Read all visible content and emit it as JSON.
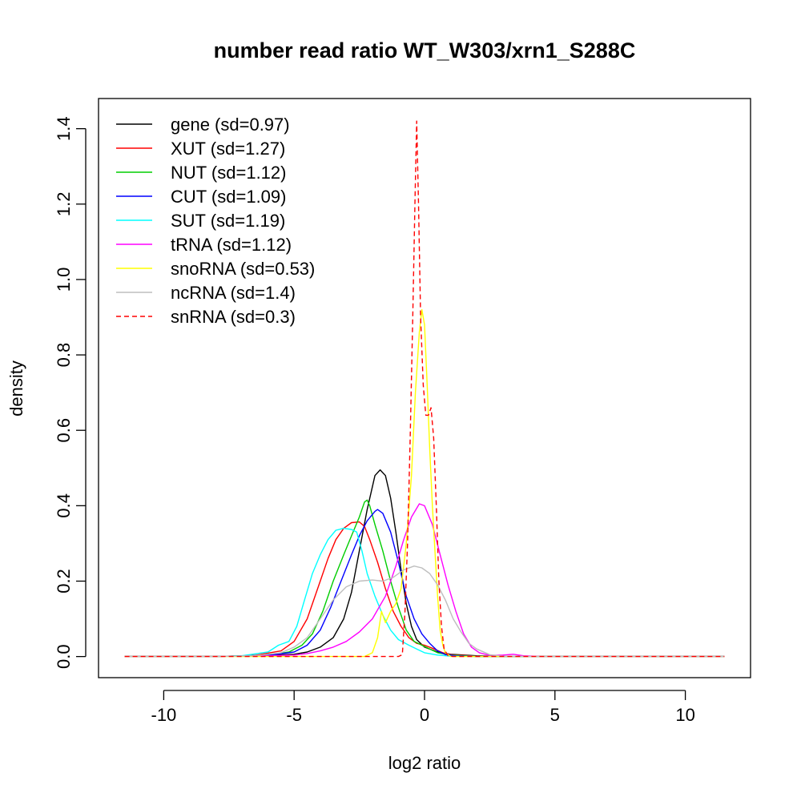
{
  "chart_data": {
    "type": "line",
    "title": "number read ratio WT_W303/xrn1_S288C",
    "xlabel": "log2 ratio",
    "ylabel": "density",
    "xlim": [
      -12.5,
      12.5
    ],
    "ylim": [
      -0.056,
      1.48
    ],
    "xticks": [
      -10,
      -5,
      0,
      5,
      10
    ],
    "xtick_labels": [
      "-10",
      "-5",
      "0",
      "5",
      "10"
    ],
    "yticks": [
      0.0,
      0.2,
      0.4,
      0.6,
      0.8,
      1.0,
      1.2,
      1.4
    ],
    "ytick_labels": [
      "0.0",
      "0.2",
      "0.4",
      "0.6",
      "0.8",
      "1.0",
      "1.2",
      "1.4"
    ],
    "grid": false,
    "legend_position": "top-left",
    "series": [
      {
        "name": "gene (sd=0.97)",
        "color": "#000000",
        "dash": false,
        "points": [
          [
            -11.5,
            0
          ],
          [
            -8,
            0
          ],
          [
            -6,
            0.003
          ],
          [
            -5,
            0.006
          ],
          [
            -4.5,
            0.012
          ],
          [
            -4,
            0.025
          ],
          [
            -3.5,
            0.05
          ],
          [
            -3.1,
            0.1
          ],
          [
            -2.8,
            0.17
          ],
          [
            -2.5,
            0.28
          ],
          [
            -2.2,
            0.39
          ],
          [
            -1.9,
            0.48
          ],
          [
            -1.7,
            0.495
          ],
          [
            -1.5,
            0.48
          ],
          [
            -1.3,
            0.42
          ],
          [
            -1.1,
            0.33
          ],
          [
            -0.9,
            0.23
          ],
          [
            -0.7,
            0.14
          ],
          [
            -0.5,
            0.08
          ],
          [
            -0.3,
            0.045
          ],
          [
            0,
            0.025
          ],
          [
            0.5,
            0.012
          ],
          [
            1,
            0.006
          ],
          [
            2,
            0.002
          ],
          [
            3,
            0
          ],
          [
            11.5,
            0
          ]
        ]
      },
      {
        "name": "XUT (sd=1.27)",
        "color": "#ff0000",
        "dash": false,
        "points": [
          [
            -11.5,
            0
          ],
          [
            -8,
            0
          ],
          [
            -6.5,
            0.003
          ],
          [
            -5.5,
            0.015
          ],
          [
            -5,
            0.04
          ],
          [
            -4.5,
            0.1
          ],
          [
            -4,
            0.2
          ],
          [
            -3.7,
            0.26
          ],
          [
            -3.4,
            0.31
          ],
          [
            -3.1,
            0.34
          ],
          [
            -2.8,
            0.355
          ],
          [
            -2.5,
            0.357
          ],
          [
            -2.3,
            0.345
          ],
          [
            -2.1,
            0.31
          ],
          [
            -1.8,
            0.25
          ],
          [
            -1.5,
            0.18
          ],
          [
            -1.2,
            0.12
          ],
          [
            -0.9,
            0.08
          ],
          [
            -0.6,
            0.05
          ],
          [
            -0.3,
            0.035
          ],
          [
            0,
            0.03
          ],
          [
            0.3,
            0.022
          ],
          [
            0.7,
            0.01
          ],
          [
            1,
            0.005
          ],
          [
            2,
            0.001
          ],
          [
            3,
            0
          ],
          [
            11.5,
            0
          ]
        ]
      },
      {
        "name": "NUT (sd=1.12)",
        "color": "#00cd00",
        "dash": false,
        "points": [
          [
            -11.5,
            0
          ],
          [
            -8,
            0
          ],
          [
            -6,
            0.003
          ],
          [
            -5.2,
            0.012
          ],
          [
            -4.7,
            0.03
          ],
          [
            -4.3,
            0.06
          ],
          [
            -3.9,
            0.12
          ],
          [
            -3.5,
            0.2
          ],
          [
            -3.1,
            0.27
          ],
          [
            -2.8,
            0.32
          ],
          [
            -2.5,
            0.37
          ],
          [
            -2.3,
            0.41
          ],
          [
            -2.2,
            0.415
          ],
          [
            -2.1,
            0.4
          ],
          [
            -1.9,
            0.35
          ],
          [
            -1.6,
            0.28
          ],
          [
            -1.3,
            0.2
          ],
          [
            -1,
            0.13
          ],
          [
            -0.7,
            0.07
          ],
          [
            -0.4,
            0.04
          ],
          [
            -0.1,
            0.03
          ],
          [
            0.2,
            0.02
          ],
          [
            0.5,
            0.01
          ],
          [
            1,
            0.004
          ],
          [
            2,
            0
          ],
          [
            11.5,
            0
          ]
        ]
      },
      {
        "name": "CUT (sd=1.09)",
        "color": "#0000ff",
        "dash": false,
        "points": [
          [
            -11.5,
            0
          ],
          [
            -8,
            0
          ],
          [
            -6,
            0.003
          ],
          [
            -5,
            0.012
          ],
          [
            -4.5,
            0.03
          ],
          [
            -4,
            0.07
          ],
          [
            -3.6,
            0.13
          ],
          [
            -3.2,
            0.2
          ],
          [
            -2.8,
            0.27
          ],
          [
            -2.5,
            0.32
          ],
          [
            -2.2,
            0.36
          ],
          [
            -1.9,
            0.385
          ],
          [
            -1.8,
            0.39
          ],
          [
            -1.6,
            0.38
          ],
          [
            -1.3,
            0.33
          ],
          [
            -1,
            0.25
          ],
          [
            -0.7,
            0.16
          ],
          [
            -0.4,
            0.1
          ],
          [
            -0.1,
            0.06
          ],
          [
            0.2,
            0.035
          ],
          [
            0.5,
            0.015
          ],
          [
            0.8,
            0.005
          ],
          [
            1.2,
            0.002
          ],
          [
            2,
            0
          ],
          [
            11.5,
            0
          ]
        ]
      },
      {
        "name": "SUT (sd=1.19)",
        "color": "#00ffff",
        "dash": false,
        "points": [
          [
            -11.5,
            0
          ],
          [
            -8,
            0
          ],
          [
            -7,
            0.002
          ],
          [
            -6,
            0.012
          ],
          [
            -5.6,
            0.03
          ],
          [
            -5.2,
            0.04
          ],
          [
            -4.9,
            0.08
          ],
          [
            -4.6,
            0.15
          ],
          [
            -4.3,
            0.22
          ],
          [
            -4,
            0.27
          ],
          [
            -3.7,
            0.31
          ],
          [
            -3.4,
            0.335
          ],
          [
            -3.1,
            0.34
          ],
          [
            -2.8,
            0.337
          ],
          [
            -2.6,
            0.33
          ],
          [
            -2.4,
            0.28
          ],
          [
            -2.2,
            0.22
          ],
          [
            -1.9,
            0.16
          ],
          [
            -1.6,
            0.11
          ],
          [
            -1.3,
            0.07
          ],
          [
            -1,
            0.045
          ],
          [
            -0.6,
            0.03
          ],
          [
            -0.3,
            0.02
          ],
          [
            0,
            0.01
          ],
          [
            0.5,
            0.004
          ],
          [
            1,
            0.001
          ],
          [
            2,
            0
          ],
          [
            11.5,
            0
          ]
        ]
      },
      {
        "name": "tRNA (sd=1.12)",
        "color": "#ff00ff",
        "dash": false,
        "points": [
          [
            -11.5,
            0
          ],
          [
            -8,
            0
          ],
          [
            -6,
            0.002
          ],
          [
            -5,
            0.004
          ],
          [
            -4.5,
            0.008
          ],
          [
            -4,
            0.015
          ],
          [
            -3.5,
            0.025
          ],
          [
            -3,
            0.04
          ],
          [
            -2.5,
            0.065
          ],
          [
            -2,
            0.1
          ],
          [
            -1.5,
            0.16
          ],
          [
            -1.1,
            0.24
          ],
          [
            -0.8,
            0.31
          ],
          [
            -0.5,
            0.37
          ],
          [
            -0.2,
            0.405
          ],
          [
            0,
            0.4
          ],
          [
            0.3,
            0.35
          ],
          [
            0.6,
            0.27
          ],
          [
            0.9,
            0.19
          ],
          [
            1.2,
            0.12
          ],
          [
            1.5,
            0.06
          ],
          [
            1.8,
            0.025
          ],
          [
            2.1,
            0.01
          ],
          [
            2.5,
            0.003
          ],
          [
            3,
            0.004
          ],
          [
            3.4,
            0.006
          ],
          [
            3.8,
            0.002
          ],
          [
            4.5,
            0
          ],
          [
            11.5,
            0
          ]
        ]
      },
      {
        "name": "snoRNA (sd=0.53)",
        "color": "#ffff00",
        "dash": false,
        "points": [
          [
            -11.5,
            0
          ],
          [
            -3,
            0
          ],
          [
            -2.3,
            0
          ],
          [
            -2,
            0.01
          ],
          [
            -1.8,
            0.05
          ],
          [
            -1.65,
            0.12
          ],
          [
            -1.5,
            0.09
          ],
          [
            -1.3,
            0.12
          ],
          [
            -1.1,
            0.14
          ],
          [
            -0.9,
            0.18
          ],
          [
            -0.7,
            0.3
          ],
          [
            -0.5,
            0.48
          ],
          [
            -0.35,
            0.7
          ],
          [
            -0.2,
            0.86
          ],
          [
            -0.1,
            0.92
          ],
          [
            0,
            0.88
          ],
          [
            0.1,
            0.72
          ],
          [
            0.2,
            0.55
          ],
          [
            0.3,
            0.4
          ],
          [
            0.4,
            0.28
          ],
          [
            0.5,
            0.16
          ],
          [
            0.6,
            0.07
          ],
          [
            0.7,
            0.03
          ],
          [
            0.8,
            0.01
          ],
          [
            1,
            0
          ],
          [
            11.5,
            0
          ]
        ]
      },
      {
        "name": "ncRNA (sd=1.4)",
        "color": "#bebebe",
        "dash": false,
        "points": [
          [
            -11.5,
            0
          ],
          [
            -8,
            0
          ],
          [
            -6.5,
            0.002
          ],
          [
            -5.5,
            0.01
          ],
          [
            -5,
            0.025
          ],
          [
            -4.5,
            0.05
          ],
          [
            -4,
            0.1
          ],
          [
            -3.5,
            0.15
          ],
          [
            -3,
            0.185
          ],
          [
            -2.5,
            0.2
          ],
          [
            -2,
            0.203
          ],
          [
            -1.6,
            0.2
          ],
          [
            -1.2,
            0.21
          ],
          [
            -0.8,
            0.23
          ],
          [
            -0.4,
            0.24
          ],
          [
            -0.1,
            0.235
          ],
          [
            0.2,
            0.22
          ],
          [
            0.5,
            0.19
          ],
          [
            0.8,
            0.15
          ],
          [
            1.1,
            0.1
          ],
          [
            1.4,
            0.065
          ],
          [
            1.7,
            0.035
          ],
          [
            2,
            0.02
          ],
          [
            2.5,
            0.005
          ],
          [
            3,
            0.001
          ],
          [
            4,
            0
          ],
          [
            11.5,
            0
          ]
        ]
      },
      {
        "name": "snRNA (sd=0.3)",
        "color": "#ff0000",
        "dash": true,
        "points": [
          [
            -11.5,
            0
          ],
          [
            -1,
            0
          ],
          [
            -0.85,
            0.005
          ],
          [
            -0.75,
            0.12
          ],
          [
            -0.65,
            0.3
          ],
          [
            -0.55,
            0.58
          ],
          [
            -0.45,
            0.9
          ],
          [
            -0.37,
            1.2
          ],
          [
            -0.3,
            1.42
          ],
          [
            -0.23,
            1.2
          ],
          [
            -0.15,
            0.9
          ],
          [
            -0.05,
            0.72
          ],
          [
            0.05,
            0.64
          ],
          [
            0.15,
            0.64
          ],
          [
            0.25,
            0.66
          ],
          [
            0.35,
            0.58
          ],
          [
            0.45,
            0.4
          ],
          [
            0.55,
            0.2
          ],
          [
            0.65,
            0.08
          ],
          [
            0.75,
            0.02
          ],
          [
            0.9,
            0.002
          ],
          [
            1.1,
            0
          ],
          [
            11.5,
            0
          ]
        ]
      }
    ]
  }
}
